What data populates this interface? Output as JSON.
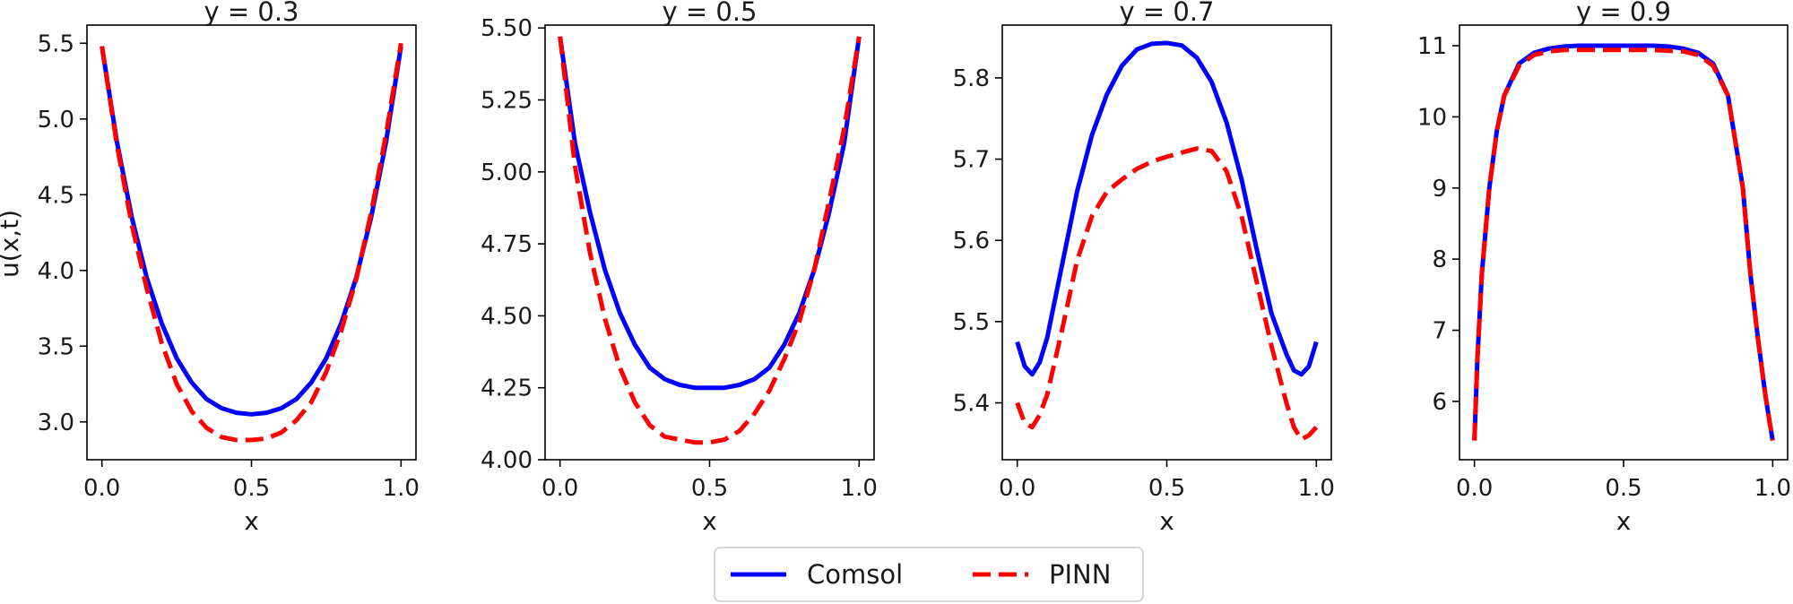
{
  "chart_data": [
    {
      "type": "line",
      "title": "y = 0.3",
      "xlabel": "x",
      "ylabel": "u(x,t)",
      "xlim": [
        -0.05,
        1.05
      ],
      "ylim": [
        2.75,
        5.62
      ],
      "xticks": [
        0.0,
        0.5,
        1.0
      ],
      "xtick_labels": [
        "0.0",
        "0.5",
        "1.0"
      ],
      "yticks": [
        3.0,
        3.5,
        4.0,
        4.5,
        5.0,
        5.5
      ],
      "ytick_labels": [
        "3.0",
        "3.5",
        "4.0",
        "4.5",
        "5.0",
        "5.5"
      ],
      "x": [
        0.0,
        0.05,
        0.1,
        0.15,
        0.2,
        0.25,
        0.3,
        0.35,
        0.4,
        0.45,
        0.5,
        0.55,
        0.6,
        0.65,
        0.7,
        0.75,
        0.8,
        0.85,
        0.9,
        0.95,
        1.0
      ],
      "series": [
        {
          "name": "Comsol",
          "values": [
            5.48,
            4.85,
            4.35,
            3.95,
            3.65,
            3.42,
            3.26,
            3.15,
            3.09,
            3.06,
            3.05,
            3.06,
            3.09,
            3.15,
            3.26,
            3.42,
            3.65,
            3.95,
            4.35,
            4.85,
            5.48
          ]
        },
        {
          "name": "PINN",
          "values": [
            5.48,
            4.83,
            4.3,
            3.88,
            3.52,
            3.25,
            3.07,
            2.96,
            2.9,
            2.88,
            2.88,
            2.89,
            2.93,
            3.01,
            3.13,
            3.33,
            3.6,
            3.94,
            4.38,
            4.9,
            5.5
          ]
        }
      ]
    },
    {
      "type": "line",
      "title": "y = 0.5",
      "xlabel": "x",
      "ylabel": "",
      "xlim": [
        -0.05,
        1.05
      ],
      "ylim": [
        4.0,
        5.51
      ],
      "xticks": [
        0.0,
        0.5,
        1.0
      ],
      "xtick_labels": [
        "0.0",
        "0.5",
        "1.0"
      ],
      "yticks": [
        4.0,
        4.25,
        4.5,
        4.75,
        5.0,
        5.25,
        5.5
      ],
      "ytick_labels": [
        "4.00",
        "4.25",
        "4.50",
        "4.75",
        "5.00",
        "5.25",
        "5.50"
      ],
      "x": [
        0.0,
        0.05,
        0.1,
        0.15,
        0.2,
        0.25,
        0.3,
        0.35,
        0.4,
        0.45,
        0.5,
        0.55,
        0.6,
        0.65,
        0.7,
        0.75,
        0.8,
        0.85,
        0.9,
        0.95,
        1.0
      ],
      "series": [
        {
          "name": "Comsol",
          "values": [
            5.47,
            5.1,
            4.86,
            4.66,
            4.51,
            4.4,
            4.32,
            4.28,
            4.26,
            4.25,
            4.25,
            4.25,
            4.26,
            4.28,
            4.32,
            4.4,
            4.51,
            4.66,
            4.86,
            5.1,
            5.47
          ]
        },
        {
          "name": "PINN",
          "values": [
            5.47,
            5.02,
            4.72,
            4.49,
            4.32,
            4.2,
            4.12,
            4.08,
            4.07,
            4.06,
            4.06,
            4.07,
            4.1,
            4.16,
            4.24,
            4.35,
            4.48,
            4.66,
            4.9,
            5.15,
            5.47
          ]
        }
      ]
    },
    {
      "type": "line",
      "title": "y = 0.7",
      "xlabel": "x",
      "ylabel": "",
      "xlim": [
        -0.05,
        1.05
      ],
      "ylim": [
        5.33,
        5.865
      ],
      "xticks": [
        0.0,
        0.5,
        1.0
      ],
      "xtick_labels": [
        "0.0",
        "0.5",
        "1.0"
      ],
      "yticks": [
        5.4,
        5.5,
        5.6,
        5.7,
        5.8
      ],
      "ytick_labels": [
        "5.4",
        "5.5",
        "5.6",
        "5.7",
        "5.8"
      ],
      "x": [
        0.0,
        0.025,
        0.05,
        0.075,
        0.1,
        0.15,
        0.2,
        0.25,
        0.3,
        0.35,
        0.4,
        0.45,
        0.5,
        0.55,
        0.6,
        0.65,
        0.7,
        0.75,
        0.8,
        0.85,
        0.9,
        0.925,
        0.95,
        0.975,
        1.0
      ],
      "series": [
        {
          "name": "Comsol",
          "values": [
            5.475,
            5.445,
            5.435,
            5.45,
            5.48,
            5.57,
            5.66,
            5.73,
            5.78,
            5.815,
            5.835,
            5.842,
            5.843,
            5.84,
            5.825,
            5.795,
            5.745,
            5.675,
            5.59,
            5.51,
            5.46,
            5.44,
            5.435,
            5.445,
            5.475
          ]
        },
        {
          "name": "PINN",
          "values": [
            5.4,
            5.375,
            5.37,
            5.385,
            5.41,
            5.49,
            5.575,
            5.63,
            5.66,
            5.675,
            5.688,
            5.697,
            5.703,
            5.708,
            5.713,
            5.71,
            5.685,
            5.63,
            5.55,
            5.47,
            5.4,
            5.37,
            5.355,
            5.36,
            5.37
          ]
        }
      ]
    },
    {
      "type": "line",
      "title": "y = 0.9",
      "xlabel": "x",
      "ylabel": "",
      "xlim": [
        -0.05,
        1.05
      ],
      "ylim": [
        5.18,
        11.29
      ],
      "xticks": [
        0.0,
        0.5,
        1.0
      ],
      "xtick_labels": [
        "0.0",
        "0.5",
        "1.0"
      ],
      "yticks": [
        6,
        7,
        8,
        9,
        10,
        11
      ],
      "ytick_labels": [
        "6",
        "7",
        "8",
        "9",
        "10",
        "11"
      ],
      "x": [
        0.0,
        0.01,
        0.025,
        0.05,
        0.075,
        0.1,
        0.15,
        0.2,
        0.25,
        0.3,
        0.35,
        0.4,
        0.5,
        0.6,
        0.65,
        0.7,
        0.75,
        0.8,
        0.85,
        0.9,
        0.925,
        0.95,
        0.975,
        0.99,
        1.0
      ],
      "series": [
        {
          "name": "Comsol",
          "values": [
            5.45,
            6.6,
            7.8,
            9.0,
            9.8,
            10.3,
            10.75,
            10.9,
            10.96,
            10.99,
            11.0,
            11.0,
            11.0,
            11.0,
            10.99,
            10.96,
            10.9,
            10.75,
            10.3,
            9.0,
            7.8,
            6.9,
            6.1,
            5.7,
            5.45
          ]
        },
        {
          "name": "PINN",
          "values": [
            5.45,
            6.6,
            7.8,
            9.0,
            9.8,
            10.3,
            10.72,
            10.87,
            10.92,
            10.94,
            10.94,
            10.94,
            10.94,
            10.94,
            10.93,
            10.92,
            10.87,
            10.72,
            10.3,
            9.0,
            7.8,
            6.9,
            6.1,
            5.7,
            5.45
          ]
        }
      ]
    }
  ],
  "legend": {
    "placement": "bottom-center",
    "entries": [
      {
        "name": "Comsol",
        "color": "#0000ff",
        "style": "solid"
      },
      {
        "name": "PINN",
        "color": "#ff0000",
        "style": "dashed"
      }
    ]
  }
}
